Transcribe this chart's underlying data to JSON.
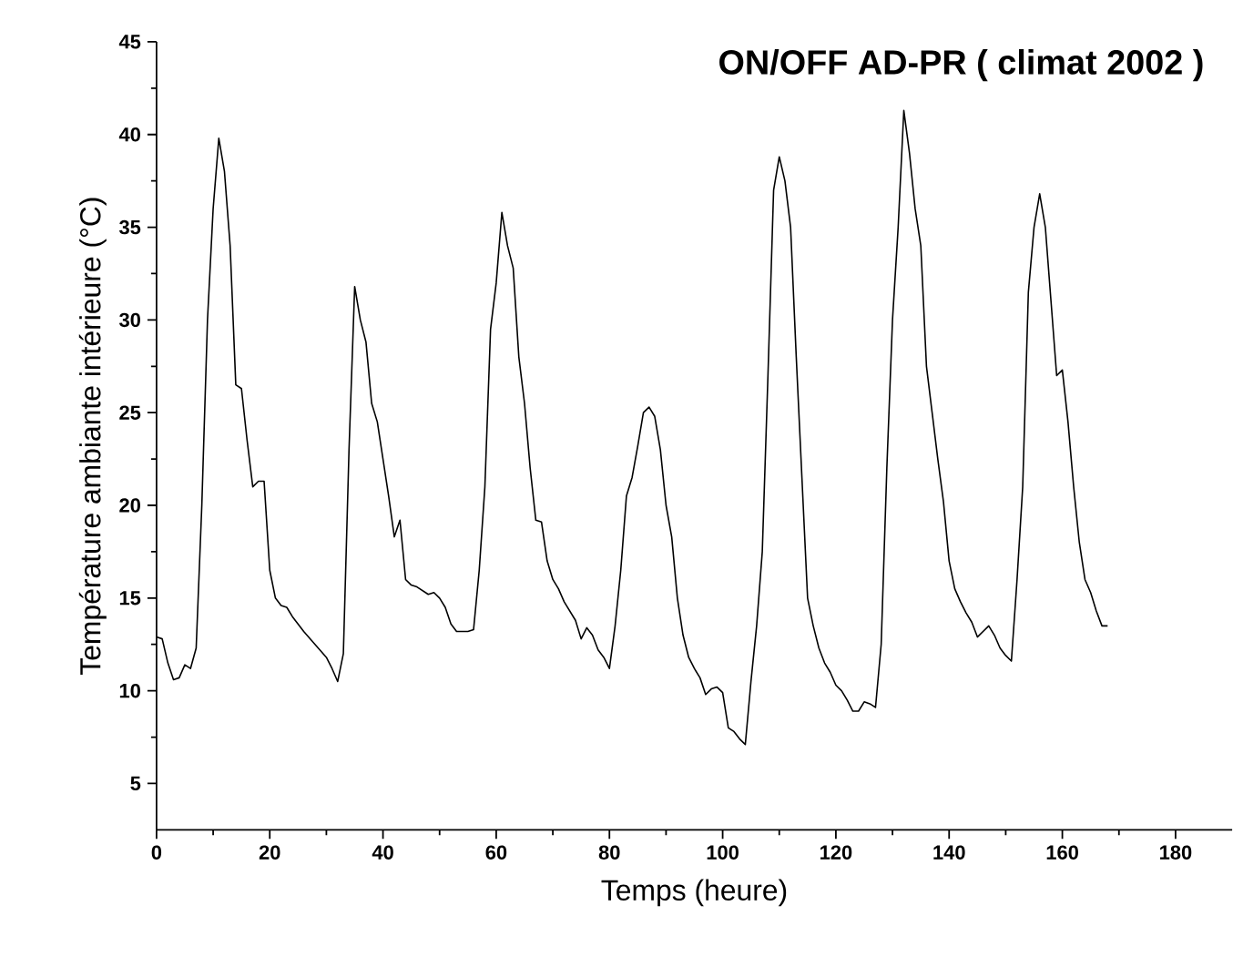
{
  "chart_data": {
    "type": "line",
    "title": "ON/OFF AD-PR ( climat 2002 )",
    "xlabel": "Temps (heure)",
    "ylabel": "Température ambiante intérieure (°C)",
    "xlim": [
      0,
      190
    ],
    "ylim": [
      2.5,
      45
    ],
    "xticks": [
      0,
      20,
      40,
      60,
      80,
      100,
      120,
      140,
      160,
      180
    ],
    "yticks": [
      5,
      10,
      15,
      20,
      25,
      30,
      35,
      40,
      45
    ],
    "marker": "none",
    "line_style": "solid",
    "series": [
      {
        "color": "#000000",
        "x": [
          0,
          1,
          2,
          3,
          4,
          5,
          6,
          7,
          8,
          9,
          10,
          11,
          12,
          13,
          14,
          15,
          16,
          17,
          18,
          19,
          20,
          21,
          22,
          23,
          24,
          26,
          28,
          30,
          31,
          32,
          33,
          34,
          35,
          36,
          37,
          38,
          39,
          40,
          41,
          42,
          43,
          44,
          45,
          46,
          47,
          48,
          49,
          50,
          51,
          52,
          53,
          55,
          56,
          57,
          58,
          59,
          60,
          61,
          62,
          63,
          64,
          65,
          66,
          67,
          68,
          69,
          70,
          71,
          72,
          73,
          74,
          75,
          76,
          77,
          78,
          79,
          80,
          81,
          82,
          83,
          84,
          85,
          86,
          87,
          88,
          89,
          90,
          91,
          92,
          93,
          94,
          95,
          96,
          97,
          98,
          99,
          100,
          101,
          102,
          103,
          104,
          105,
          106,
          107,
          108,
          109,
          110,
          111,
          112,
          113,
          114,
          115,
          116,
          117,
          118,
          119,
          120,
          121,
          122,
          123,
          124,
          125,
          126,
          127,
          128,
          129,
          130,
          131,
          132,
          133,
          134,
          135,
          136,
          137,
          138,
          139,
          140,
          141,
          142,
          143,
          144,
          145,
          146,
          147,
          148,
          149,
          150,
          151,
          152,
          153,
          154,
          155,
          156,
          157,
          158,
          159,
          160,
          161,
          162,
          163,
          164,
          165,
          166,
          167,
          168
        ],
        "values": [
          12.9,
          12.8,
          11.5,
          10.6,
          10.7,
          11.4,
          11.2,
          12.3,
          20,
          30,
          36,
          39.8,
          38,
          34,
          26.5,
          26.3,
          23.5,
          21,
          21.3,
          21.3,
          16.5,
          15,
          14.6,
          14.5,
          14,
          13.2,
          12.5,
          11.8,
          11.2,
          10.5,
          12,
          23,
          31.8,
          30,
          28.8,
          25.5,
          24.5,
          22.5,
          20.5,
          18.3,
          19.2,
          16,
          15.7,
          15.6,
          15.4,
          15.2,
          15.3,
          15,
          14.5,
          13.6,
          13.2,
          13.2,
          13.3,
          16.5,
          21,
          29.5,
          32,
          35.8,
          34,
          32.8,
          28,
          25.5,
          22,
          19.2,
          19.1,
          17,
          16,
          15.5,
          14.8,
          14.3,
          13.8,
          12.8,
          13.4,
          13,
          12.2,
          11.8,
          11.2,
          13.5,
          16.5,
          20.5,
          21.5,
          23.2,
          25,
          25.3,
          24.8,
          23,
          20,
          18.3,
          15,
          13,
          11.8,
          11.2,
          10.7,
          9.8,
          10.1,
          10.2,
          9.9,
          8,
          7.8,
          7.4,
          7.1,
          10.5,
          13.5,
          17.5,
          27,
          37,
          38.8,
          37.5,
          35,
          28,
          21.5,
          15,
          13.5,
          12.3,
          11.5,
          11,
          10.3,
          10,
          9.5,
          8.9,
          8.9,
          9.4,
          9.3,
          9.1,
          12.5,
          22,
          30,
          35,
          41.3,
          39,
          36,
          34,
          27.5,
          25,
          22.5,
          20.2,
          17,
          15.5,
          14.8,
          14.2,
          13.7,
          12.9,
          13.2,
          13.5,
          13,
          12.3,
          11.9,
          11.6,
          16,
          21,
          31.5,
          35,
          36.8,
          35,
          31,
          27,
          27.3,
          24.5,
          21,
          18,
          16,
          15.3,
          14.3,
          13.5,
          13.5
        ]
      }
    ]
  }
}
